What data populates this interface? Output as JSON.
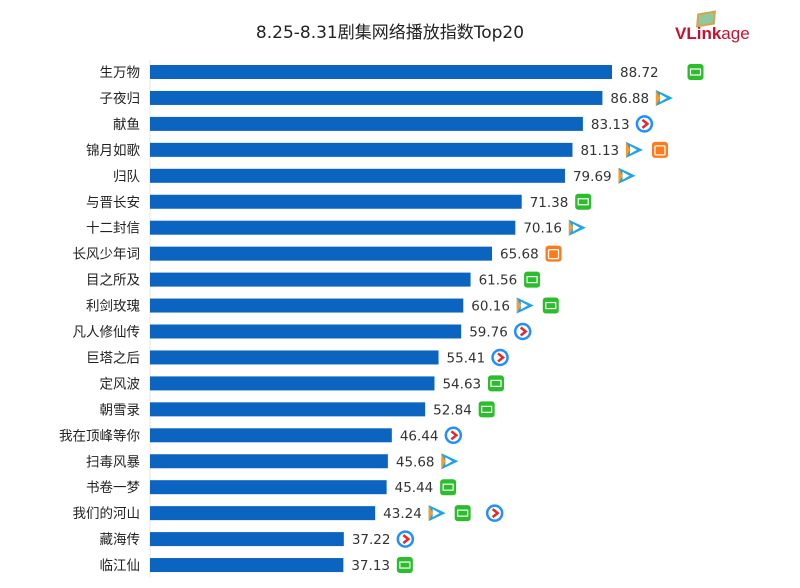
{
  "chart_data": {
    "type": "bar",
    "orientation": "horizontal",
    "title": "8.25-8.31剧集网络播放指数Top20",
    "xlim": [
      0,
      90
    ],
    "grid": false,
    "bar_color": "#0a64c0",
    "categories": [
      "生万物",
      "子夜归",
      "献鱼",
      "锦月如歌",
      "归队",
      "与晋长安",
      "十二封信",
      "长风少年词",
      "目之所及",
      "利剑玫瑰",
      "凡人修仙传",
      "巨塔之后",
      "定风波",
      "朝雪录",
      "我在顶峰等你",
      "扫毒风暴",
      "书卷一梦",
      "我们的河山",
      "藏海传",
      "临江仙"
    ],
    "values": [
      88.72,
      86.88,
      83.13,
      81.13,
      79.69,
      71.38,
      70.16,
      65.68,
      61.56,
      60.16,
      59.76,
      55.41,
      54.63,
      52.84,
      46.44,
      45.68,
      45.44,
      43.24,
      37.22,
      37.13
    ],
    "platforms": [
      [
        "iqiyi"
      ],
      [
        "tencent"
      ],
      [
        "youku"
      ],
      [
        "tencent",
        "mango"
      ],
      [
        "tencent"
      ],
      [
        "iqiyi"
      ],
      [
        "tencent"
      ],
      [
        "mango"
      ],
      [
        "iqiyi"
      ],
      [
        "tencent",
        "iqiyi"
      ],
      [
        "youku"
      ],
      [
        "youku"
      ],
      [
        "iqiyi"
      ],
      [
        "iqiyi"
      ],
      [
        "youku"
      ],
      [
        "tencent"
      ],
      [
        "iqiyi"
      ],
      [
        "tencent",
        "iqiyi",
        "youku"
      ],
      [
        "youku"
      ],
      [
        "iqiyi"
      ]
    ]
  },
  "logo": {
    "text_bold": "VLink",
    "text_light": "age"
  },
  "platform_colors": {
    "iqiyi": "#2bbd2b",
    "tencent": "#1fa3e8",
    "youku": "#1e90ff",
    "mango": "#ff7a1a"
  }
}
